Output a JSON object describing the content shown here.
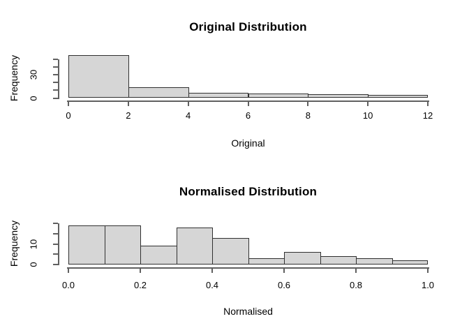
{
  "page": {
    "background": "#ffffff",
    "bar_fill": "#d6d6d6",
    "bar_border": "#303030",
    "axis_color": "#606060",
    "text_color": "#000000"
  },
  "chart_data": [
    {
      "type": "bar",
      "variant": "histogram",
      "title": "Original Distribution",
      "xlabel": "Original",
      "ylabel": "Frequency",
      "categories": [
        "0-2",
        "2-4",
        "4-6",
        "6-8",
        "8-10",
        "10-12"
      ],
      "values": [
        55,
        14,
        7,
        6,
        5,
        4
      ],
      "xlim": [
        0,
        12
      ],
      "ylim": [
        0,
        55.5
      ],
      "x_ticks": [
        0,
        2,
        4,
        6,
        8,
        10,
        12
      ],
      "x_tick_labels": [
        "0",
        "2",
        "4",
        "6",
        "8",
        "10",
        "12"
      ],
      "y_ticks": [
        0,
        10,
        20,
        30,
        40,
        50
      ],
      "y_tick_labels": [
        "0",
        "",
        "",
        "30",
        "",
        ""
      ],
      "grid": false,
      "legend": "none"
    },
    {
      "type": "bar",
      "variant": "histogram",
      "title": "Normalised Distribution",
      "xlabel": "Normalised",
      "ylabel": "Frequency",
      "categories": [
        "0.0-0.1",
        "0.1-0.2",
        "0.2-0.3",
        "0.3-0.4",
        "0.4-0.5",
        "0.5-0.6",
        "0.6-0.7",
        "0.7-0.8",
        "0.8-0.9",
        "0.9-1.0"
      ],
      "values": [
        19,
        19,
        9,
        18,
        13,
        3,
        6,
        4,
        3,
        2
      ],
      "xlim": [
        0,
        1
      ],
      "ylim": [
        0,
        20
      ],
      "x_ticks": [
        0,
        0.2,
        0.4,
        0.6,
        0.8,
        1.0
      ],
      "x_tick_labels": [
        "0.0",
        "0.2",
        "0.4",
        "0.6",
        "0.8",
        "1.0"
      ],
      "y_ticks": [
        0,
        5,
        10,
        15,
        20
      ],
      "y_tick_labels": [
        "0",
        "",
        "10",
        "",
        ""
      ],
      "grid": false,
      "legend": "none"
    }
  ]
}
